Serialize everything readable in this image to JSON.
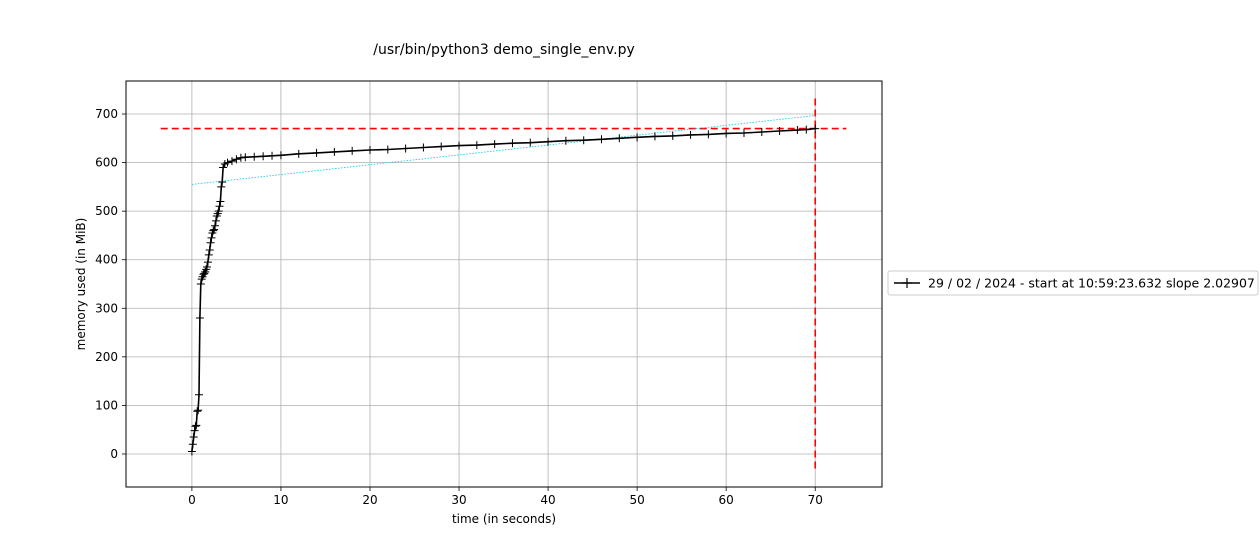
{
  "chart_data": {
    "type": "line",
    "title": "/usr/bin/python3 demo_single_env.py",
    "xlabel": "time (in seconds)",
    "ylabel": "memory used (in MiB)",
    "xlim": [
      -7.4,
      77.5
    ],
    "ylim": [
      -68,
      768
    ],
    "xticks": [
      0,
      10,
      20,
      30,
      40,
      50,
      60,
      70
    ],
    "yticks": [
      0,
      100,
      200,
      300,
      400,
      500,
      600,
      700
    ],
    "grid": true,
    "legend_position": "outside-right",
    "series": [
      {
        "name": "29 / 02 / 2024 - start at 10:59:23.632 slope 2.02907",
        "color": "#000000",
        "marker": "plus",
        "x": [
          0.0,
          0.1,
          0.2,
          0.3,
          0.4,
          0.5,
          0.6,
          0.7,
          0.8,
          0.9,
          1.0,
          1.1,
          1.2,
          1.3,
          1.4,
          1.5,
          1.6,
          1.7,
          1.8,
          1.9,
          2.0,
          2.1,
          2.2,
          2.3,
          2.4,
          2.5,
          2.6,
          2.7,
          2.8,
          2.9,
          3.0,
          3.1,
          3.2,
          3.3,
          3.4,
          3.5,
          3.7,
          4.0,
          4.5,
          5.0,
          5.5,
          6.0,
          7.0,
          8.0,
          9.0,
          10.0,
          12.0,
          14.0,
          16.0,
          18.0,
          20.0,
          22.0,
          24.0,
          26.0,
          28.0,
          30.0,
          32.0,
          34.0,
          36.0,
          38.0,
          40.0,
          42.0,
          44.0,
          46.0,
          48.0,
          50.0,
          52.0,
          54.0,
          56.0,
          58.0,
          60.0,
          62.0,
          64.0,
          66.0,
          68.0,
          69.0,
          70.0
        ],
        "y": [
          5,
          20,
          35,
          48,
          57,
          59,
          88,
          90,
          122,
          280,
          350,
          360,
          365,
          370,
          372,
          375,
          380,
          385,
          395,
          410,
          420,
          435,
          445,
          455,
          460,
          462,
          470,
          480,
          490,
          495,
          500,
          510,
          520,
          550,
          560,
          590,
          597,
          600,
          603,
          607,
          610,
          611,
          612,
          613,
          614,
          615,
          618,
          620,
          622,
          624,
          626,
          627,
          629,
          631,
          633,
          635,
          636,
          638,
          640,
          641,
          643,
          645,
          646,
          648,
          650,
          652,
          654,
          655,
          657,
          658,
          660,
          661,
          663,
          665,
          667,
          668,
          670
        ]
      }
    ],
    "annotations": [
      {
        "kind": "hline",
        "y": 670,
        "x_from": -3.5,
        "x_to": 73.5,
        "color": "#ff0000",
        "style": "dashed"
      },
      {
        "kind": "vline",
        "x": 70.0,
        "y_from": -30,
        "y_to": 735,
        "color": "#ff0000",
        "style": "dashed"
      },
      {
        "kind": "trendline",
        "x": [
          0,
          70
        ],
        "y": [
          555,
          697
        ],
        "color": "#00c8e6",
        "style": "dotted"
      }
    ]
  }
}
